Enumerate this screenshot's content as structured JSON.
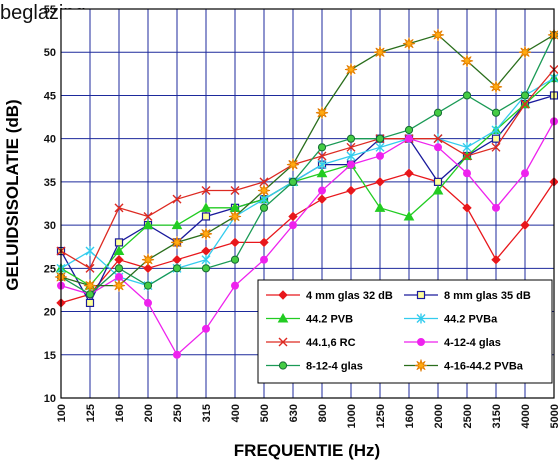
{
  "caption": "beglazing.",
  "chart_data": {
    "type": "line",
    "title": "",
    "xlabel": "FREQUENTIE (Hz)",
    "ylabel": "GELUIDSISOLATIE (dB)",
    "ylim": [
      10,
      55
    ],
    "yticks": [
      "10",
      "15",
      "20",
      "25",
      "30",
      "35",
      "40",
      "45",
      "50",
      "55"
    ],
    "categories": [
      "100",
      "125",
      "160",
      "200",
      "250",
      "315",
      "400",
      "500",
      "630",
      "800",
      "1000",
      "1250",
      "1600",
      "2000",
      "2500",
      "3150",
      "4000",
      "5000"
    ],
    "grid": true,
    "legend_position": "bottom-right",
    "series": [
      {
        "name": "4 mm glas 32 dB",
        "color": "#e8171c",
        "marker": "diamond",
        "values": [
          21,
          22,
          26,
          25,
          26,
          27,
          28,
          28,
          31,
          33,
          34,
          35,
          36,
          35,
          32,
          26,
          30,
          35
        ]
      },
      {
        "name": "8 mm glas 35 dB",
        "color": "#1a1a9c",
        "marker": "square-open",
        "values": [
          27,
          21,
          28,
          30,
          28,
          31,
          32,
          33,
          35,
          37,
          37,
          40,
          40,
          35,
          38,
          40,
          44,
          45
        ]
      },
      {
        "name": "44.2 PVB",
        "color": "#22cc22",
        "marker": "triangle",
        "values": [
          25,
          23,
          27,
          30,
          30,
          32,
          32,
          33,
          35,
          36,
          37,
          32,
          31,
          34,
          38,
          41,
          44,
          47
        ]
      },
      {
        "name": "44.2 PVBa",
        "color": "#33ccee",
        "marker": "star",
        "values": [
          25,
          27,
          24,
          23,
          25,
          26,
          31,
          33,
          35,
          37,
          38,
          39,
          40,
          40,
          39,
          41,
          45,
          47
        ]
      },
      {
        "name": "44.1,6 RC",
        "color": "#dd2a22",
        "marker": "x",
        "values": [
          27,
          25,
          32,
          31,
          33,
          34,
          34,
          35,
          37,
          38,
          39,
          40,
          40,
          40,
          38,
          39,
          44,
          48
        ]
      },
      {
        "name": "4-12-4 glas",
        "color": "#ee22ee",
        "marker": "circle",
        "values": [
          23,
          22,
          24,
          21,
          15,
          18,
          23,
          26,
          30,
          34,
          37,
          38,
          40,
          39,
          36,
          32,
          36,
          42
        ]
      },
      {
        "name": "8-12-4 glas",
        "color": "#1a9a55",
        "marker": "circle-green",
        "values": [
          24,
          22,
          25,
          23,
          25,
          25,
          26,
          32,
          35,
          39,
          40,
          40,
          41,
          43,
          45,
          43,
          45,
          52
        ]
      },
      {
        "name": "4-16-44.2 PVBa",
        "color": "#2a6e1c",
        "marker": "star-orange",
        "values": [
          24,
          23,
          23,
          26,
          28,
          29,
          31,
          34,
          37,
          43,
          48,
          50,
          51,
          52,
          49,
          46,
          50,
          52
        ]
      }
    ]
  }
}
